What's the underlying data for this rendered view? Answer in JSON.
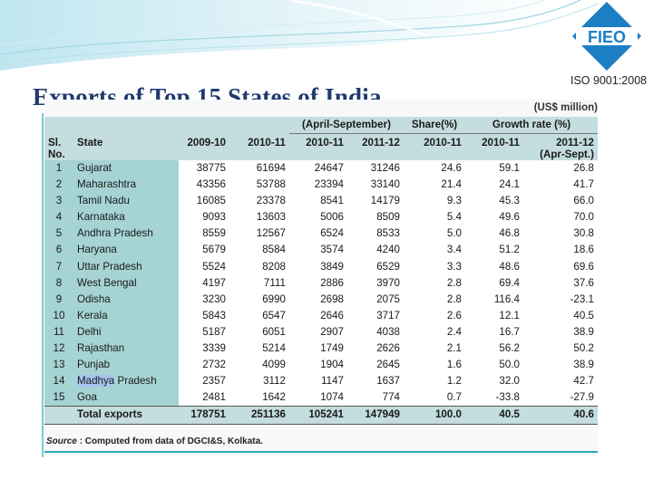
{
  "slide": {
    "title": "Exports of Top 15 States of India",
    "logo_text": "FIEO",
    "certification": "ISO 9001:2008",
    "accent_color": "#1c7fc4"
  },
  "table": {
    "unit": "(US$  million)",
    "group_headers": {
      "apr_sep": "(April-September)",
      "share": "Share(%)",
      "growth": "Growth rate (%)"
    },
    "columns": {
      "sl": "Sl.",
      "no": "No.",
      "state": "State",
      "c1": "2009-10",
      "c2": "2010-11",
      "c3": "2010-11",
      "c4": "2011-12",
      "c5": "2010-11",
      "c6": "2010-11",
      "c7": "2011-12",
      "c7b": "(Apr-Sept.)"
    },
    "rows": [
      {
        "no": "1",
        "state": "Gujarat",
        "y0910": "38775",
        "y1011": "61694",
        "as1011": "24647",
        "as1112": "31246",
        "share": "24.6",
        "g1011": "59.1",
        "g1112": "26.8"
      },
      {
        "no": "2",
        "state": "Maharashtra",
        "y0910": "43356",
        "y1011": "53788",
        "as1011": "23394",
        "as1112": "33140",
        "share": "21.4",
        "g1011": "24.1",
        "g1112": "41.7"
      },
      {
        "no": "3",
        "state": "Tamil Nadu",
        "y0910": "16085",
        "y1011": "23378",
        "as1011": "8541",
        "as1112": "14179",
        "share": "9.3",
        "g1011": "45.3",
        "g1112": "66.0"
      },
      {
        "no": "4",
        "state": "Karnataka",
        "y0910": "9093",
        "y1011": "13603",
        "as1011": "5006",
        "as1112": "8509",
        "share": "5.4",
        "g1011": "49.6",
        "g1112": "70.0"
      },
      {
        "no": "5",
        "state": "Andhra Pradesh",
        "y0910": "8559",
        "y1011": "12567",
        "as1011": "6524",
        "as1112": "8533",
        "share": "5.0",
        "g1011": "46.8",
        "g1112": "30.8"
      },
      {
        "no": "6",
        "state": "Haryana",
        "y0910": "5679",
        "y1011": "8584",
        "as1011": "3574",
        "as1112": "4240",
        "share": "3.4",
        "g1011": "51.2",
        "g1112": "18.6"
      },
      {
        "no": "7",
        "state": "Uttar Pradesh",
        "y0910": "5524",
        "y1011": "8208",
        "as1011": "3849",
        "as1112": "6529",
        "share": "3.3",
        "g1011": "48.6",
        "g1112": "69.6"
      },
      {
        "no": "8",
        "state": "West Bengal",
        "y0910": "4197",
        "y1011": "7111",
        "as1011": "2886",
        "as1112": "3970",
        "share": "2.8",
        "g1011": "69.4",
        "g1112": "37.6"
      },
      {
        "no": "9",
        "state": "Odisha",
        "y0910": "3230",
        "y1011": "6990",
        "as1011": "2698",
        "as1112": "2075",
        "share": "2.8",
        "g1011": "116.4",
        "g1112": "-23.1"
      },
      {
        "no": "10",
        "state": "Kerala",
        "y0910": "5843",
        "y1011": "6547",
        "as1011": "2646",
        "as1112": "3717",
        "share": "2.6",
        "g1011": "12.1",
        "g1112": "40.5"
      },
      {
        "no": "11",
        "state": "Delhi",
        "y0910": "5187",
        "y1011": "6051",
        "as1011": "2907",
        "as1112": "4038",
        "share": "2.4",
        "g1011": "16.7",
        "g1112": "38.9"
      },
      {
        "no": "12",
        "state": "Rajasthan",
        "y0910": "3339",
        "y1011": "5214",
        "as1011": "1749",
        "as1112": "2626",
        "share": "2.1",
        "g1011": "56.2",
        "g1112": "50.2"
      },
      {
        "no": "13",
        "state": "Punjab",
        "y0910": "2732",
        "y1011": "4099",
        "as1011": "1904",
        "as1112": "2645",
        "share": "1.6",
        "g1011": "50.0",
        "g1112": "38.9"
      },
      {
        "no": "14",
        "state_a": "Madhya",
        "state_b": " Pradesh",
        "y0910": "2357",
        "y1011": "3112",
        "as1011": "1147",
        "as1112": "1637",
        "share": "1.2",
        "g1011": "32.0",
        "g1112": "42.7"
      },
      {
        "no": "15",
        "state": "Goa",
        "y0910": "2481",
        "y1011": "1642",
        "as1011": "1074",
        "as1112": "774",
        "share": "0.7",
        "g1011": "-33.8",
        "g1112": "-27.9"
      }
    ],
    "total": {
      "label": "Total exports",
      "y0910": "178751",
      "y1011": "251136",
      "as1011": "105241",
      "as1112": "147949",
      "share": "100.0",
      "g1011": "40.5",
      "g1112": "40.6"
    },
    "source_label": "Source",
    "source_text": ": Computed from data of DGCI&S, Kolkata."
  }
}
